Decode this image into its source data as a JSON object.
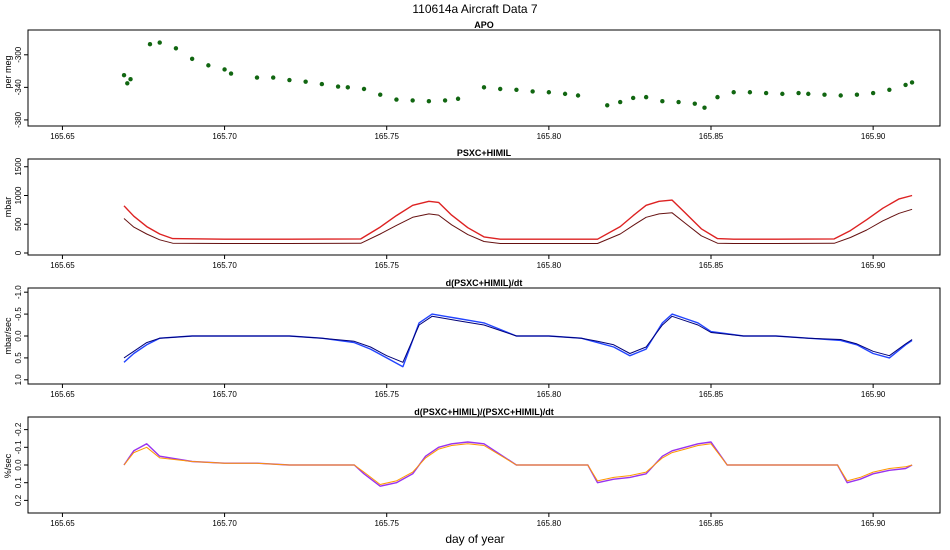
{
  "figure": {
    "title": "110614a   Aircraft Data 7",
    "xlabel": "day of year"
  },
  "colors": {
    "apo_light": "#33dd33",
    "apo_dark": "#116611",
    "psxc_upper": "#dd2222",
    "psxc_lower": "#661111",
    "deriv_light": "#2244ff",
    "deriv_dark": "#000077",
    "rel_light": "#9933ee",
    "rel_dark": "#ff9900",
    "axis": "#000000",
    "background": "#ffffff"
  },
  "chart_data": [
    {
      "type": "scatter",
      "title": "APO",
      "ylabel": "per meg",
      "xlim": [
        165.64,
        165.92
      ],
      "ylim": [
        -385,
        -272
      ],
      "y_reversed": false,
      "xticks": [
        "165.65",
        "165.70",
        "165.75",
        "165.80",
        "165.85",
        "165.90"
      ],
      "yticks": [
        "-300",
        "-340",
        "-380"
      ],
      "series": [
        {
          "color": "apo_dark",
          "x": [
            165.669,
            165.67,
            165.671,
            165.677,
            165.68,
            165.685,
            165.69,
            165.695,
            165.7,
            165.702,
            165.71,
            165.715,
            165.72,
            165.725,
            165.73,
            165.735,
            165.738,
            165.743,
            165.748,
            165.753,
            165.758,
            165.763,
            165.768,
            165.772,
            165.78,
            165.785,
            165.79,
            165.795,
            165.8,
            165.805,
            165.809,
            165.818,
            165.822,
            165.826,
            165.83,
            165.835,
            165.84,
            165.845,
            165.848,
            165.852,
            165.857,
            165.862,
            165.867,
            165.872,
            165.877,
            165.88,
            165.885,
            165.89,
            165.895,
            165.9,
            165.905,
            165.91,
            165.912
          ],
          "y": [
            -325,
            -335,
            -330,
            -287,
            -285,
            -292,
            -305,
            -313,
            -318,
            -323,
            -328,
            -328,
            -331,
            -333,
            -336,
            -339,
            -340,
            -342,
            -349,
            -355,
            -356,
            -357,
            -356,
            -354,
            -340,
            -342,
            -343,
            -345,
            -346,
            -348,
            -350,
            -362,
            -358,
            -353,
            -352,
            -357,
            -358,
            -360,
            -365,
            -352,
            -346,
            -346,
            -347,
            -348,
            -347,
            -348,
            -349,
            -350,
            -349,
            -347,
            -343,
            -337,
            -334
          ]
        }
      ]
    },
    {
      "type": "line",
      "title": "PSXC+HIMIL",
      "ylabel": "mbar",
      "xlim": [
        165.64,
        165.92
      ],
      "ylim": [
        0,
        1600
      ],
      "y_reversed": false,
      "xticks": [
        "165.65",
        "165.70",
        "165.75",
        "165.80",
        "165.85",
        "165.90"
      ],
      "yticks": [
        "0",
        "500",
        "1000",
        "1500"
      ],
      "series": [
        {
          "color": "psxc_upper",
          "x": [
            165.669,
            165.672,
            165.676,
            165.68,
            165.684,
            165.7,
            165.72,
            165.742,
            165.748,
            165.753,
            165.758,
            165.763,
            165.766,
            165.77,
            165.775,
            165.78,
            165.785,
            165.8,
            165.815,
            165.822,
            165.826,
            165.83,
            165.834,
            165.838,
            165.842,
            165.847,
            165.852,
            165.857,
            165.87,
            165.888,
            165.893,
            165.898,
            165.903,
            165.908,
            165.912
          ],
          "y": [
            820,
            640,
            460,
            330,
            250,
            240,
            240,
            245,
            450,
            650,
            830,
            900,
            880,
            660,
            440,
            280,
            240,
            240,
            240,
            460,
            650,
            830,
            900,
            920,
            700,
            420,
            250,
            240,
            240,
            245,
            390,
            580,
            780,
            940,
            1000
          ]
        },
        {
          "color": "psxc_lower",
          "x": [
            165.669,
            165.672,
            165.676,
            165.68,
            165.684,
            165.7,
            165.72,
            165.742,
            165.748,
            165.753,
            165.758,
            165.763,
            165.766,
            165.77,
            165.775,
            165.78,
            165.785,
            165.8,
            165.815,
            165.822,
            165.826,
            165.83,
            165.834,
            165.838,
            165.842,
            165.847,
            165.852,
            165.857,
            165.87,
            165.888,
            165.893,
            165.898,
            165.903,
            165.908,
            165.912
          ],
          "y": [
            600,
            450,
            330,
            230,
            170,
            165,
            165,
            168,
            330,
            480,
            620,
            680,
            660,
            490,
            320,
            200,
            165,
            165,
            165,
            330,
            480,
            620,
            680,
            700,
            520,
            300,
            170,
            165,
            165,
            168,
            270,
            400,
            560,
            690,
            760
          ]
        }
      ]
    },
    {
      "type": "line",
      "title": "d(PSXC+HIMIL)/dt",
      "ylabel": "mbar/sec",
      "xlim": [
        165.64,
        165.92
      ],
      "ylim": [
        -1.05,
        1.05
      ],
      "y_reversed": true,
      "xticks": [
        "165.65",
        "165.70",
        "165.75",
        "165.80",
        "165.85",
        "165.90"
      ],
      "yticks": [
        "-1.0",
        "-0.5",
        "0.0",
        "0.5",
        "1.0"
      ],
      "series": [
        {
          "color": "deriv_light",
          "x": [
            165.669,
            165.672,
            165.676,
            165.68,
            165.69,
            165.7,
            165.71,
            165.72,
            165.73,
            165.74,
            165.745,
            165.75,
            165.755,
            165.76,
            165.764,
            165.768,
            165.772,
            165.776,
            165.78,
            165.79,
            165.8,
            165.81,
            165.815,
            165.82,
            165.825,
            165.83,
            165.835,
            165.838,
            165.842,
            165.846,
            165.85,
            165.86,
            165.87,
            165.88,
            165.89,
            165.895,
            165.9,
            165.905,
            165.91,
            165.912
          ],
          "y": [
            0.6,
            0.4,
            0.2,
            0.05,
            0.0,
            0.0,
            0.0,
            0.0,
            0.05,
            0.15,
            0.3,
            0.5,
            0.7,
            -0.3,
            -0.5,
            -0.45,
            -0.4,
            -0.35,
            -0.3,
            0.0,
            0.0,
            0.05,
            0.15,
            0.25,
            0.45,
            0.3,
            -0.3,
            -0.5,
            -0.4,
            -0.3,
            -0.1,
            0.0,
            0.0,
            0.05,
            0.1,
            0.2,
            0.4,
            0.5,
            0.2,
            0.1
          ]
        },
        {
          "color": "deriv_dark",
          "x": [
            165.669,
            165.672,
            165.676,
            165.68,
            165.69,
            165.7,
            165.71,
            165.72,
            165.73,
            165.74,
            165.745,
            165.75,
            165.755,
            165.76,
            165.764,
            165.768,
            165.772,
            165.776,
            165.78,
            165.79,
            165.8,
            165.81,
            165.815,
            165.82,
            165.825,
            165.83,
            165.835,
            165.838,
            165.842,
            165.846,
            165.85,
            165.86,
            165.87,
            165.88,
            165.89,
            165.895,
            165.9,
            165.905,
            165.91,
            165.912
          ],
          "y": [
            0.5,
            0.35,
            0.15,
            0.05,
            0.0,
            0.0,
            0.0,
            0.0,
            0.05,
            0.12,
            0.25,
            0.45,
            0.6,
            -0.25,
            -0.45,
            -0.4,
            -0.35,
            -0.3,
            -0.25,
            0.0,
            0.0,
            0.05,
            0.12,
            0.2,
            0.4,
            0.25,
            -0.25,
            -0.45,
            -0.35,
            -0.25,
            -0.08,
            0.0,
            0.0,
            0.05,
            0.08,
            0.18,
            0.35,
            0.45,
            0.18,
            0.08
          ]
        }
      ]
    },
    {
      "type": "line",
      "title": "d(PSXC+HIMIL)/(PSXC+HIMIL)/dt",
      "ylabel": "%/sec",
      "xlim": [
        165.64,
        165.92
      ],
      "ylim": [
        -0.26,
        0.26
      ],
      "y_reversed": true,
      "xticks": [
        "165.65",
        "165.70",
        "165.75",
        "165.80",
        "165.85",
        "165.90"
      ],
      "yticks": [
        "-0.2",
        "-0.1",
        "0.0",
        "0.1",
        "0.2"
      ],
      "series": [
        {
          "color": "rel_light",
          "x": [
            165.669,
            165.672,
            165.676,
            165.68,
            165.69,
            165.7,
            165.71,
            165.72,
            165.73,
            165.74,
            165.743,
            165.748,
            165.753,
            165.758,
            165.762,
            165.766,
            165.77,
            165.775,
            165.78,
            165.79,
            165.8,
            165.812,
            165.815,
            165.82,
            165.825,
            165.83,
            165.835,
            165.838,
            165.842,
            165.846,
            165.85,
            165.855,
            165.86,
            165.87,
            165.88,
            165.889,
            165.892,
            165.896,
            165.9,
            165.905,
            165.91,
            165.912
          ],
          "y": [
            0.0,
            -0.08,
            -0.12,
            -0.05,
            -0.02,
            -0.01,
            -0.01,
            0.0,
            0.0,
            0.0,
            0.05,
            0.12,
            0.1,
            0.05,
            -0.05,
            -0.1,
            -0.12,
            -0.13,
            -0.12,
            0.0,
            0.0,
            0.0,
            0.1,
            0.08,
            0.07,
            0.05,
            -0.05,
            -0.08,
            -0.1,
            -0.12,
            -0.13,
            0.0,
            0.0,
            0.0,
            0.0,
            0.0,
            0.1,
            0.08,
            0.05,
            0.03,
            0.02,
            0.0
          ]
        },
        {
          "color": "rel_dark",
          "x": [
            165.669,
            165.672,
            165.676,
            165.68,
            165.69,
            165.7,
            165.71,
            165.72,
            165.73,
            165.74,
            165.743,
            165.748,
            165.753,
            165.758,
            165.762,
            165.766,
            165.77,
            165.775,
            165.78,
            165.79,
            165.8,
            165.812,
            165.815,
            165.82,
            165.825,
            165.83,
            165.835,
            165.838,
            165.842,
            165.846,
            165.85,
            165.855,
            165.86,
            165.87,
            165.88,
            165.889,
            165.892,
            165.896,
            165.9,
            165.905,
            165.91,
            165.912
          ],
          "y": [
            0.0,
            -0.07,
            -0.1,
            -0.04,
            -0.02,
            -0.01,
            -0.01,
            0.0,
            0.0,
            0.0,
            0.04,
            0.11,
            0.09,
            0.04,
            -0.04,
            -0.09,
            -0.11,
            -0.12,
            -0.11,
            0.0,
            0.0,
            0.0,
            0.09,
            0.07,
            0.06,
            0.04,
            -0.04,
            -0.07,
            -0.09,
            -0.11,
            -0.12,
            0.0,
            0.0,
            0.0,
            0.0,
            0.0,
            0.09,
            0.07,
            0.04,
            0.02,
            0.01,
            0.0
          ]
        }
      ]
    }
  ]
}
